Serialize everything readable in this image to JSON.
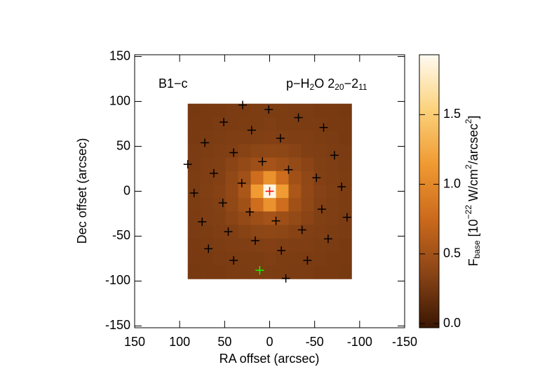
{
  "chart_data": {
    "type": "heatmap",
    "source": "B1−c",
    "annotation_parts": [
      "p−H",
      "2",
      "O 2",
      "20",
      "−2",
      "11"
    ],
    "x_label": "RA offset (arcsec)",
    "y_label": "Dec offset (arcsec)",
    "colorbar_label_parts": [
      "F",
      "base",
      " [10",
      "−22",
      " W/cm",
      "2",
      "/arcsec",
      "2",
      "]"
    ],
    "xlim": [
      150,
      -150
    ],
    "ylim": [
      -152,
      152
    ],
    "xticks": [
      150,
      100,
      50,
      0,
      -50,
      -100,
      -150
    ],
    "yticks": [
      150,
      100,
      50,
      0,
      -50,
      -100,
      -150
    ],
    "clim": [
      -0.03,
      1.93
    ],
    "cticks": [
      {
        "value": 0,
        "label": "0.0"
      },
      0.5,
      {
        "value": 1,
        "label": "1.0"
      },
      1.5
    ],
    "colormap": [
      "#3a1603",
      "#8a4416",
      "#cc6a1c",
      "#f09a32",
      "#fbd27c",
      "#fffbf2"
    ],
    "heatmap": {
      "extent_x": [
        91,
        -91
      ],
      "extent_y": [
        97.5,
        -97.5
      ],
      "values": [
        [
          0.27,
          0.28,
          0.28,
          0.29,
          0.29,
          0.3,
          0.3,
          0.3,
          0.29,
          0.29,
          0.28,
          0.28,
          0.27
        ],
        [
          0.28,
          0.28,
          0.29,
          0.29,
          0.3,
          0.3,
          0.31,
          0.3,
          0.3,
          0.29,
          0.29,
          0.28,
          0.28
        ],
        [
          0.28,
          0.29,
          0.3,
          0.31,
          0.31,
          0.32,
          0.33,
          0.32,
          0.31,
          0.31,
          0.3,
          0.29,
          0.28
        ],
        [
          0.29,
          0.3,
          0.31,
          0.32,
          0.35,
          0.38,
          0.39,
          0.38,
          0.35,
          0.32,
          0.31,
          0.3,
          0.29
        ],
        [
          0.29,
          0.31,
          0.32,
          0.36,
          0.42,
          0.48,
          0.52,
          0.48,
          0.42,
          0.36,
          0.32,
          0.31,
          0.29
        ],
        [
          0.3,
          0.31,
          0.33,
          0.4,
          0.5,
          0.78,
          1.08,
          0.78,
          0.5,
          0.4,
          0.33,
          0.31,
          0.3
        ],
        [
          0.3,
          0.32,
          0.34,
          0.41,
          0.56,
          1.15,
          1.88,
          1.15,
          0.56,
          0.41,
          0.34,
          0.32,
          0.3
        ],
        [
          0.3,
          0.31,
          0.33,
          0.4,
          0.5,
          0.78,
          1.08,
          0.78,
          0.5,
          0.4,
          0.33,
          0.31,
          0.3
        ],
        [
          0.29,
          0.31,
          0.32,
          0.36,
          0.42,
          0.48,
          0.52,
          0.48,
          0.42,
          0.36,
          0.32,
          0.31,
          0.29
        ],
        [
          0.29,
          0.3,
          0.31,
          0.32,
          0.35,
          0.38,
          0.39,
          0.38,
          0.35,
          0.32,
          0.31,
          0.3,
          0.29
        ],
        [
          0.28,
          0.29,
          0.3,
          0.31,
          0.31,
          0.32,
          0.33,
          0.32,
          0.31,
          0.31,
          0.3,
          0.29,
          0.28
        ],
        [
          0.28,
          0.28,
          0.29,
          0.29,
          0.3,
          0.3,
          0.31,
          0.3,
          0.3,
          0.29,
          0.29,
          0.28,
          0.28
        ],
        [
          0.27,
          0.28,
          0.28,
          0.29,
          0.29,
          0.3,
          0.3,
          0.3,
          0.29,
          0.29,
          0.28,
          0.28,
          0.27
        ]
      ]
    },
    "markers": [
      {
        "color": "#000000",
        "x": [
          30,
          1,
          -32,
          51,
          -60,
          20,
          72,
          -12,
          40,
          -72,
          8,
          91,
          -21,
          62,
          -52,
          31,
          -80,
          84,
          52,
          -58,
          22,
          -86,
          -7,
          75,
          -36,
          46,
          -65,
          16,
          68,
          -13,
          40,
          -42,
          -18
        ],
        "y": [
          96,
          91,
          82,
          77,
          71,
          68,
          54,
          59,
          43,
          40,
          33,
          30,
          24,
          20,
          15,
          9,
          5,
          -2,
          -13,
          -20,
          -23,
          -29,
          -33,
          -34,
          -43,
          -45,
          -53,
          -55,
          -64,
          -66,
          -77,
          -77,
          -97
        ]
      },
      {
        "color": "#ff0000",
        "x": [
          0
        ],
        "y": [
          0
        ]
      },
      {
        "color": "#00ff00",
        "x": [
          11
        ],
        "y": [
          -88
        ]
      }
    ]
  }
}
